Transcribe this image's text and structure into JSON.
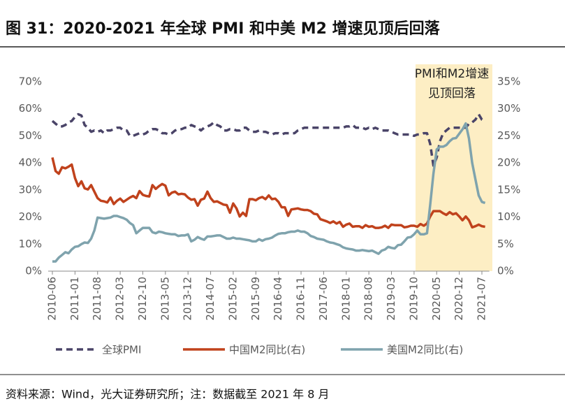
{
  "chart_data": {
    "type": "line",
    "title": "图 31：2020-2021 年全球 PMI 和中美 M2 增速见顶后回落",
    "annotation": "PMI和M2增速见顶回落",
    "source": "资料来源：Wind，光大证券研究所；注：数据截至 2021 年 8 月",
    "categories": [
      "2010-06",
      null,
      null,
      null,
      null,
      null,
      null,
      "2011-01",
      null,
      null,
      null,
      null,
      null,
      null,
      "2011-08",
      null,
      null,
      null,
      null,
      null,
      null,
      "2012-03",
      null,
      null,
      null,
      null,
      null,
      null,
      "2012-10",
      null,
      null,
      null,
      null,
      null,
      null,
      "2013-05",
      null,
      null,
      null,
      null,
      null,
      null,
      "2013-12",
      null,
      null,
      null,
      null,
      null,
      null,
      "2014-07",
      null,
      null,
      null,
      null,
      null,
      null,
      "2015-02",
      null,
      null,
      null,
      null,
      null,
      null,
      "2015-09",
      null,
      null,
      null,
      null,
      null,
      null,
      "2016-04",
      null,
      null,
      null,
      null,
      null,
      null,
      "2016-11",
      null,
      null,
      null,
      null,
      null,
      null,
      "2017-06",
      null,
      null,
      null,
      null,
      null,
      null,
      "2018-01",
      null,
      null,
      null,
      null,
      null,
      null,
      "2018-08",
      null,
      null,
      null,
      null,
      null,
      null,
      "2019-03",
      null,
      null,
      null,
      null,
      null,
      null,
      "2019-10",
      null,
      null,
      null,
      null,
      null,
      null,
      "2020-05",
      null,
      null,
      null,
      null,
      null,
      null,
      "2020-12",
      null,
      null,
      null,
      null,
      null,
      null,
      "2021-07",
      null
    ],
    "ylim": [
      0,
      70
    ],
    "yticks": [
      {
        "value": 0,
        "label": "0%"
      },
      {
        "value": 10,
        "label": "10%"
      },
      {
        "value": 20,
        "label": "20%"
      },
      {
        "value": 30,
        "label": "30%"
      },
      {
        "value": 40,
        "label": "40%"
      },
      {
        "value": 50,
        "label": "50%"
      },
      {
        "value": 60,
        "label": "60%"
      },
      {
        "value": 70,
        "label": "70%"
      }
    ],
    "y2lim": [
      0,
      35
    ],
    "y2ticks": [
      {
        "value": 0,
        "label": "0%"
      },
      {
        "value": 5,
        "label": "5%"
      },
      {
        "value": 10,
        "label": "10%"
      },
      {
        "value": 15,
        "label": "15%"
      },
      {
        "value": 20,
        "label": "20%"
      },
      {
        "value": 25,
        "label": "25%"
      },
      {
        "value": 30,
        "label": "30%"
      },
      {
        "value": 35,
        "label": "35%"
      }
    ],
    "series": [
      {
        "name": "全球PMI",
        "color": "#4a4468",
        "dashed": true,
        "values": [
          55.5,
          54.5,
          53.5,
          53.5,
          54,
          55,
          55.5,
          57,
          58,
          57.5,
          54,
          53,
          51.5,
          52,
          51.5,
          52,
          51,
          52,
          52,
          52.5,
          53,
          53,
          52,
          52,
          50,
          50,
          50.5,
          51,
          50.5,
          51,
          52,
          52.5,
          52.5,
          52,
          51,
          51,
          50.5,
          51,
          52,
          52.5,
          52.5,
          53,
          53,
          54,
          53.5,
          53,
          52,
          53,
          53.5,
          54,
          55,
          54,
          53.5,
          52,
          52,
          52.5,
          52.5,
          52,
          52,
          53,
          53,
          52,
          51.5,
          51.5,
          52,
          51.5,
          51.5,
          51,
          50.5,
          51,
          51,
          50.5,
          51,
          51,
          51,
          51,
          52,
          52.5,
          53,
          53,
          53,
          53,
          53,
          53,
          53,
          53,
          53,
          53,
          53,
          53,
          53,
          53.5,
          53.5,
          54,
          53,
          53,
          53,
          52.5,
          53,
          52.5,
          53,
          52.5,
          52,
          52,
          52,
          51.5,
          51,
          50.5,
          50.5,
          50.5,
          50.5,
          50.5,
          50,
          50.5,
          50.5,
          51,
          51,
          47,
          39,
          42,
          48,
          51,
          52,
          53,
          53,
          53,
          53,
          53,
          53,
          54.5,
          55,
          56,
          58,
          56,
          55.5
        ]
      },
      {
        "name": "中国M2同比(右)",
        "color": "#c0421c",
        "axis": "y2",
        "values": [
          21,
          18.5,
          18,
          19.2,
          19,
          19.3,
          19.7,
          17.2,
          15.7,
          16.6,
          15.3,
          15.1,
          15.9,
          14.7,
          13.5,
          13,
          12.9,
          12.7,
          13.6,
          12.4,
          13,
          13.4,
          12.8,
          13.2,
          13.6,
          13.9,
          13.5,
          14.8,
          14.1,
          13.9,
          13.8,
          15.9,
          15.2,
          15.7,
          16.1,
          15.8,
          14,
          14.5,
          14.7,
          14.2,
          14.3,
          14.2,
          13.6,
          13.2,
          13.3,
          12.1,
          13.2,
          13.4,
          14.7,
          13.5,
          12.8,
          12.9,
          12.6,
          12.3,
          12.2,
          10.8,
          12.5,
          11.6,
          10.1,
          10.8,
          10.2,
          13.3,
          13.3,
          13.1,
          13.5,
          13.7,
          13.3,
          14,
          13.3,
          13.4,
          12.8,
          11.8,
          11.8,
          10.2,
          11.4,
          11.5,
          11.6,
          11.4,
          11.3,
          11.3,
          11.1,
          10.6,
          10.5,
          9.6,
          9.4,
          9.2,
          8.9,
          9.2,
          8.8,
          9.1,
          8.2,
          8.6,
          8.8,
          8.2,
          8.3,
          8.3,
          8,
          8.5,
          8.2,
          8.3,
          8,
          8,
          8.1,
          8.4,
          8,
          8.6,
          8.5,
          8.5,
          8.5,
          8.1,
          8.2,
          8.4,
          8.4,
          8.2,
          8.7,
          8.4,
          8.8,
          10.1,
          11.1,
          11.1,
          11.1,
          10.7,
          10.4,
          10.9,
          10.5,
          10.7,
          10.1,
          9.4,
          10.1,
          9.4,
          8.1,
          8.3,
          8.6,
          8.3,
          8.2
        ]
      },
      {
        "name": "美国M2同比(右)",
        "color": "#7fa3ad",
        "axis": "y2",
        "values": [
          1.8,
          1.8,
          2.5,
          3,
          3.5,
          3.3,
          4,
          4.5,
          4.6,
          5,
          5.3,
          5.2,
          6,
          7.5,
          9.9,
          9.8,
          9.7,
          9.8,
          9.9,
          10.2,
          10.2,
          10,
          9.8,
          9.5,
          8.9,
          8.5,
          7,
          7.5,
          8,
          8,
          8,
          7.2,
          7,
          7.3,
          7.2,
          7,
          6.9,
          6.8,
          6.8,
          6.5,
          6.6,
          6.6,
          6.8,
          5.5,
          5.8,
          6.3,
          6,
          5.8,
          6.4,
          6.4,
          6.5,
          6.6,
          6.6,
          6.3,
          6,
          6,
          6.2,
          6,
          6,
          5.9,
          5.8,
          5.7,
          5.5,
          5.5,
          5.9,
          5.6,
          5.9,
          6,
          6.2,
          6.6,
          6.9,
          7,
          7,
          7.2,
          7.3,
          7.3,
          7.5,
          7.3,
          7.3,
          7,
          6.5,
          6.3,
          6,
          5.9,
          5.8,
          5.5,
          5.3,
          5.2,
          5,
          4.8,
          4.4,
          4.2,
          4.1,
          4,
          3.8,
          3.8,
          3.9,
          3.8,
          3.7,
          3.8,
          3.5,
          3.2,
          3.8,
          4,
          4.5,
          4.3,
          4.2,
          4.8,
          4.9,
          5.5,
          6.2,
          6.3,
          6.8,
          7.5,
          6.8,
          6.8,
          7,
          12.3,
          18,
          22.5,
          23,
          23,
          23.3,
          24,
          24.5,
          24.6,
          25.4,
          26.2,
          27.3,
          24.5,
          20,
          17,
          14,
          12.8,
          12.6
        ]
      }
    ]
  }
}
